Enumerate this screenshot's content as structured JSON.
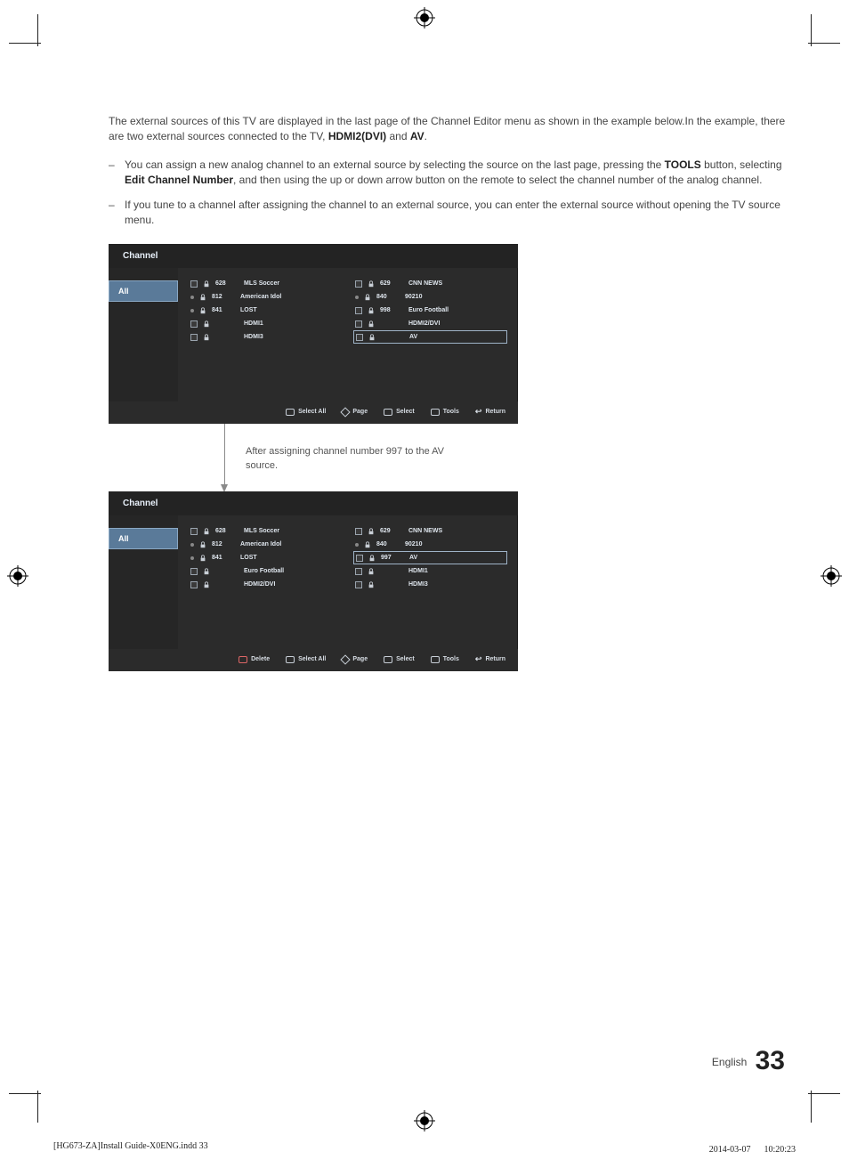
{
  "intro": {
    "line1_a": "The external sources of this TV are displayed in the last page of the Channel Editor menu as shown in the example below.In the example, there are two external sources connected to the TV, ",
    "hdmi": "HDMI2(DVI)",
    "and": " and ",
    "av": "AV",
    "period": "."
  },
  "bullets": {
    "b1_a": "You can assign a new analog channel to an external source by selecting the source on the last page, pressing the ",
    "b1_tools": "TOOLS",
    "b1_b": " button, selecting ",
    "b1_edit": "Edit Channel Number",
    "b1_c": ", and then using the up or down arrow button on the remote to select the channel number of the analog channel.",
    "b2": "If you tune to a channel after assigning the channel to an external source, you can enter the external source without opening the TV source menu."
  },
  "panel": {
    "title": "Channel",
    "sideTab": "All",
    "footer": {
      "delete": "Delete",
      "selectAll": "Select All",
      "page": "Page",
      "select": "Select",
      "tools": "Tools",
      "return": "Return"
    }
  },
  "panel1": {
    "left": [
      {
        "cb": true,
        "lock": true,
        "num": "628",
        "name": "MLS Soccer"
      },
      {
        "dot": true,
        "lock": true,
        "num": "812",
        "name": "American Idol"
      },
      {
        "dot": true,
        "lock": true,
        "num": "841",
        "name": "LOST"
      },
      {
        "cb": true,
        "lock": true,
        "num": "",
        "name": "HDMI1"
      },
      {
        "cb": true,
        "lock": true,
        "num": "",
        "name": "HDMI3"
      }
    ],
    "right": [
      {
        "cb": true,
        "lock": true,
        "num": "629",
        "name": "CNN NEWS"
      },
      {
        "dot": true,
        "lock": true,
        "num": "840",
        "name": "90210"
      },
      {
        "cb": true,
        "lock": true,
        "num": "998",
        "name": "Euro Football"
      },
      {
        "cb": true,
        "lock": true,
        "num": "",
        "name": "HDMI2/DVI"
      },
      {
        "cb": true,
        "lock": true,
        "num": "",
        "name": "AV",
        "hl": true
      }
    ]
  },
  "caption": "After assigning channel number 997 to the AV source.",
  "panel2": {
    "left": [
      {
        "cb": true,
        "lock": true,
        "num": "628",
        "name": "MLS Soccer"
      },
      {
        "dot": true,
        "lock": true,
        "num": "812",
        "name": "American Idol"
      },
      {
        "dot": true,
        "lock": true,
        "num": "841",
        "name": "LOST"
      },
      {
        "cb": true,
        "lock": true,
        "num": "",
        "name": "Euro Football"
      },
      {
        "cb": true,
        "lock": true,
        "num": "",
        "name": "HDMI2/DVI"
      }
    ],
    "right": [
      {
        "cb": true,
        "lock": true,
        "num": "629",
        "name": "CNN NEWS"
      },
      {
        "dot": true,
        "lock": true,
        "num": "840",
        "name": "90210"
      },
      {
        "cb": true,
        "lock": true,
        "num": "997",
        "name": "AV",
        "hl": true
      },
      {
        "cb": true,
        "lock": true,
        "num": "",
        "name": "HDMI1"
      },
      {
        "cb": true,
        "lock": true,
        "num": "",
        "name": "HDMI3"
      }
    ]
  },
  "pageFooter": {
    "lang": "English",
    "page": "33"
  },
  "docFooter": {
    "file": "[HG673-ZA]Install Guide-X0ENG.indd   33",
    "date": "2014-03-07   　 10:20:23"
  }
}
